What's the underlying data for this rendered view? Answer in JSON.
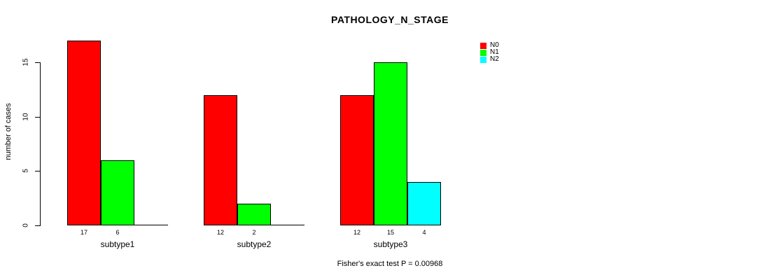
{
  "chart_data": {
    "type": "bar",
    "title": "PATHOLOGY_N_STAGE",
    "ylabel": "number of cases",
    "xlabel": "",
    "caption": "Fisher's exact test P = 0.00968",
    "categories": [
      "subtype1",
      "subtype2",
      "subtype3"
    ],
    "series": [
      {
        "name": "N0",
        "color": "#ff0000",
        "values": [
          17,
          12,
          12
        ]
      },
      {
        "name": "N1",
        "color": "#00ff00",
        "values": [
          6,
          2,
          15
        ]
      },
      {
        "name": "N2",
        "color": "#00ffff",
        "values": [
          0,
          0,
          4
        ]
      }
    ],
    "bar_value_labels": [
      [
        "17",
        "6",
        ""
      ],
      [
        "12",
        "2",
        ""
      ],
      [
        "12",
        "15",
        "4"
      ]
    ],
    "yticks": [
      0,
      5,
      10,
      15
    ],
    "ylim": [
      0,
      17
    ],
    "grid": false,
    "legend_position": "topright",
    "background_color": "#ffffff",
    "axis_color": "#000000"
  }
}
